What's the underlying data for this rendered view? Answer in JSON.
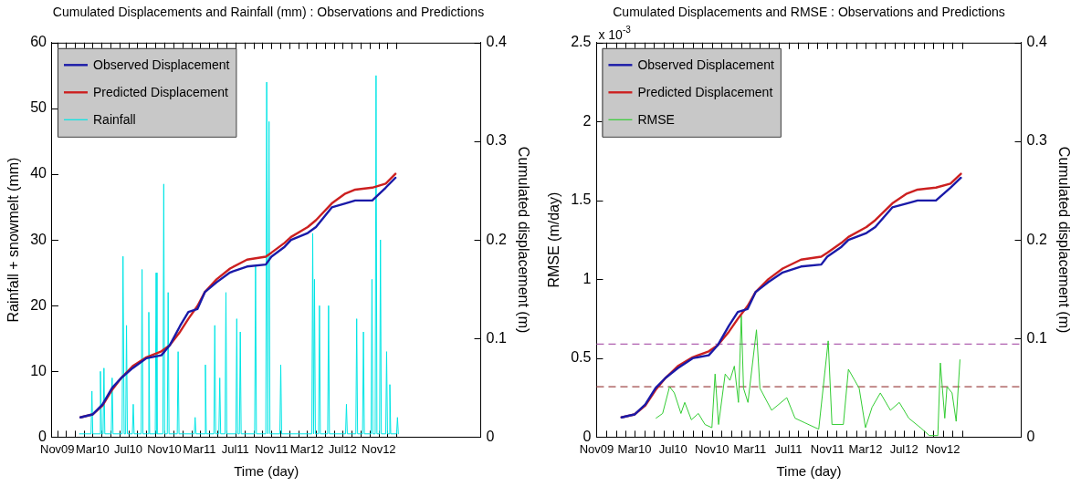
{
  "chart_data": [
    {
      "type": "line",
      "title": "Cumulated Displacements and Rainfall (mm) : Observations and Predictions",
      "xlabel": "Time (day)",
      "ylabel": "Rainfall + snowmelt (mm)",
      "y2label": "Cumulated displacement (m)",
      "legend": "top left",
      "grid": false,
      "xlim": [
        "2009-10-14",
        "2013-10-15"
      ],
      "xticks": [
        {
          "value": "2009-11-01",
          "label": "Nov09"
        },
        {
          "value": "2009-12-01",
          "label": null
        },
        {
          "value": "2010-01-01",
          "label": null
        },
        {
          "value": "2010-02-01",
          "label": null
        },
        {
          "value": "2010-03-01",
          "label": "Mar10"
        },
        {
          "value": "2010-04-01",
          "label": null
        },
        {
          "value": "2010-05-01",
          "label": null
        },
        {
          "value": "2010-06-01",
          "label": null
        },
        {
          "value": "2010-07-01",
          "label": "Jul10"
        },
        {
          "value": "2010-08-01",
          "label": null
        },
        {
          "value": "2010-09-01",
          "label": null
        },
        {
          "value": "2010-10-01",
          "label": null
        },
        {
          "value": "2010-11-01",
          "label": "Nov10"
        },
        {
          "value": "2010-12-01",
          "label": null
        },
        {
          "value": "2011-01-01",
          "label": null
        },
        {
          "value": "2011-02-01",
          "label": null
        },
        {
          "value": "2011-03-01",
          "label": "Mar11"
        },
        {
          "value": "2011-04-01",
          "label": null
        },
        {
          "value": "2011-05-01",
          "label": null
        },
        {
          "value": "2011-06-01",
          "label": null
        },
        {
          "value": "2011-07-01",
          "label": "Jul11"
        },
        {
          "value": "2011-08-01",
          "label": null
        },
        {
          "value": "2011-09-01",
          "label": null
        },
        {
          "value": "2011-10-01",
          "label": null
        },
        {
          "value": "2011-11-01",
          "label": "Nov11"
        },
        {
          "value": "2011-12-01",
          "label": null
        },
        {
          "value": "2012-01-01",
          "label": null
        },
        {
          "value": "2012-02-01",
          "label": null
        },
        {
          "value": "2012-03-01",
          "label": "Mar12"
        },
        {
          "value": "2012-04-01",
          "label": null
        },
        {
          "value": "2012-05-01",
          "label": null
        },
        {
          "value": "2012-06-01",
          "label": null
        },
        {
          "value": "2012-07-01",
          "label": "Jul12"
        },
        {
          "value": "2012-08-01",
          "label": null
        },
        {
          "value": "2012-09-01",
          "label": null
        },
        {
          "value": "2012-10-01",
          "label": null
        },
        {
          "value": "2012-11-01",
          "label": "Nov12"
        },
        {
          "value": "2012-12-01",
          "label": null
        },
        {
          "value": "2013-01-01",
          "label": null
        }
      ],
      "ylim": [
        0,
        60
      ],
      "yticks": [
        0,
        10,
        20,
        30,
        40,
        50,
        60
      ],
      "y2lim": [
        0,
        0.4
      ],
      "y2ticks": [
        0,
        0.1,
        0.2,
        0.3,
        0.4
      ],
      "series": [
        {
          "name": "Observed Displacement",
          "color": "#1a1aa8",
          "axis": "y2",
          "x": [
            "2010-01-19",
            "2010-03-01",
            "2010-04-04",
            "2010-05-07",
            "2010-06-07",
            "2010-07-16",
            "2010-09-01",
            "2010-10-22",
            "2010-11-19",
            "2010-12-25",
            "2011-01-22",
            "2011-02-22",
            "2011-03-19",
            "2011-04-28",
            "2011-06-13",
            "2011-08-10",
            "2011-10-13",
            "2011-11-01",
            "2011-12-16",
            "2012-01-07",
            "2012-03-04",
            "2012-04-01",
            "2012-05-25",
            "2012-07-10",
            "2012-08-13",
            "2012-10-10",
            "2012-11-25",
            "2012-12-28"
          ],
          "values": [
            0.02,
            0.023,
            0.033,
            0.05,
            0.06,
            0.07,
            0.08,
            0.083,
            0.093,
            0.113,
            0.127,
            0.13,
            0.147,
            0.157,
            0.167,
            0.173,
            0.175,
            0.183,
            0.193,
            0.2,
            0.207,
            0.213,
            0.233,
            0.237,
            0.24,
            0.24,
            0.253,
            0.263
          ]
        },
        {
          "name": "Predicted Displacement",
          "color": "#cc2020",
          "axis": "y2",
          "x": [
            "2010-01-19",
            "2010-03-01",
            "2010-04-04",
            "2010-05-07",
            "2010-06-07",
            "2010-07-16",
            "2010-09-01",
            "2010-10-22",
            "2010-11-19",
            "2010-12-25",
            "2011-01-22",
            "2011-02-22",
            "2011-03-19",
            "2011-04-28",
            "2011-06-13",
            "2011-08-10",
            "2011-10-13",
            "2011-11-01",
            "2011-12-16",
            "2012-01-07",
            "2012-03-04",
            "2012-04-01",
            "2012-05-25",
            "2012-07-10",
            "2012-08-13",
            "2012-10-10",
            "2012-11-25",
            "2012-12-28"
          ],
          "values": [
            0.02,
            0.023,
            0.032,
            0.048,
            0.06,
            0.072,
            0.081,
            0.087,
            0.093,
            0.107,
            0.12,
            0.133,
            0.147,
            0.16,
            0.171,
            0.18,
            0.183,
            0.187,
            0.197,
            0.203,
            0.213,
            0.22,
            0.237,
            0.247,
            0.251,
            0.253,
            0.257,
            0.267
          ]
        },
        {
          "name": "Rainfall",
          "color": "#00e5e5",
          "x": [
            "2010-01-15",
            "2010-02-24",
            "2010-02-27",
            "2010-03-02",
            "2010-03-25",
            "2010-03-28",
            "2010-04-01",
            "2010-04-06",
            "2010-04-09",
            "2010-04-12",
            "2010-05-04",
            "2010-05-07",
            "2010-05-10",
            "2010-06-10",
            "2010-06-13",
            "2010-06-17",
            "2010-06-22",
            "2010-06-25",
            "2010-06-28",
            "2010-07-15",
            "2010-07-18",
            "2010-07-21",
            "2010-08-14",
            "2010-08-17",
            "2010-08-20",
            "2010-09-06",
            "2010-09-09",
            "2010-09-12",
            "2010-10-01",
            "2010-10-04",
            "2010-10-07",
            "2010-10-27",
            "2010-10-30",
            "2010-11-02",
            "2010-11-11",
            "2010-11-14",
            "2010-11-17",
            "2010-12-15",
            "2010-12-18",
            "2010-12-21",
            "2011-02-11",
            "2011-02-14",
            "2011-02-17",
            "2011-03-18",
            "2011-03-21",
            "2011-03-24",
            "2011-04-19",
            "2011-04-22",
            "2011-04-25",
            "2011-05-06",
            "2011-05-09",
            "2011-05-12",
            "2011-05-27",
            "2011-05-30",
            "2011-06-02",
            "2011-07-03",
            "2011-07-06",
            "2011-07-09",
            "2011-07-15",
            "2011-07-18",
            "2011-07-21",
            "2011-09-05",
            "2011-09-08",
            "2011-09-11",
            "2011-10-13",
            "2011-10-16",
            "2011-10-20",
            "2011-10-24",
            "2011-10-27",
            "2011-11-30",
            "2011-12-03",
            "2011-12-06",
            "2012-03-18",
            "2012-03-21",
            "2012-03-24",
            "2012-03-27",
            "2012-03-30",
            "2012-04-10",
            "2012-04-13",
            "2012-04-16",
            "2012-05-11",
            "2012-05-14",
            "2012-05-17",
            "2012-07-11",
            "2012-07-14",
            "2012-07-17",
            "2012-08-15",
            "2012-08-18",
            "2012-08-21",
            "2012-09-07",
            "2012-09-10",
            "2012-09-13",
            "2012-10-06",
            "2012-10-09",
            "2012-10-12",
            "2012-10-20",
            "2012-10-23",
            "2012-10-26",
            "2012-11-04",
            "2012-11-07",
            "2012-11-10",
            "2012-11-25",
            "2012-11-28",
            "2012-12-01",
            "2012-12-06",
            "2012-12-09",
            "2012-12-12",
            "2013-01-01",
            "2013-01-04",
            "2013-01-07"
          ],
          "values": [
            0.5,
            0.5,
            7,
            0.5,
            0.5,
            10,
            0.5,
            0.5,
            10.5,
            0.5,
            0.5,
            9,
            0.5,
            0.5,
            27.5,
            0.5,
            0.5,
            17,
            0.5,
            0.5,
            5,
            0.5,
            0.5,
            25.5,
            0.5,
            0.5,
            19,
            0.5,
            0.5,
            25,
            0.5,
            0.5,
            38.5,
            0.5,
            0.5,
            22,
            0.5,
            0.5,
            13,
            0.5,
            0.5,
            3,
            0.5,
            0.5,
            11,
            0.5,
            0.5,
            17,
            0.5,
            0.5,
            9,
            0.5,
            0.5,
            22,
            0.5,
            0.5,
            18,
            0.5,
            0.5,
            16,
            0.5,
            0.5,
            26,
            0.5,
            0.5,
            54,
            0.5,
            48,
            0.5,
            0.5,
            11,
            0.5,
            0.5,
            31,
            0.5,
            24,
            0.5,
            0.5,
            20,
            0.5,
            0.5,
            20,
            0.5,
            0.5,
            5,
            0.5,
            0.5,
            18,
            0.5,
            0.5,
            16,
            0.5,
            0.5,
            24,
            0.5,
            0.5,
            55,
            0.5,
            0.5,
            30,
            0.5,
            0.5,
            13,
            0.5,
            0.5,
            8,
            0.5,
            0.5,
            3,
            0.5
          ]
        }
      ]
    },
    {
      "type": "line",
      "title": "Cumulated Displacements and RMSE : Observations and Predictions",
      "xlabel": "Time (day)",
      "ylabel": "RMSE (m/day)",
      "y2label": "Cumulated displacement (m)",
      "legend": "top left",
      "grid": false,
      "annotations": [
        "x 10$^{-3}$"
      ],
      "xlim": [
        "2009-11-01",
        "2013-07-07"
      ],
      "xticks": [
        {
          "value": "2009-11-01",
          "label": "Nov09"
        },
        {
          "value": "2009-12-01",
          "label": null
        },
        {
          "value": "2010-01-01",
          "label": null
        },
        {
          "value": "2010-02-01",
          "label": null
        },
        {
          "value": "2010-03-01",
          "label": "Mar10"
        },
        {
          "value": "2010-04-01",
          "label": null
        },
        {
          "value": "2010-05-01",
          "label": null
        },
        {
          "value": "2010-06-01",
          "label": null
        },
        {
          "value": "2010-07-01",
          "label": "Jul10"
        },
        {
          "value": "2010-08-01",
          "label": null
        },
        {
          "value": "2010-09-01",
          "label": null
        },
        {
          "value": "2010-10-01",
          "label": null
        },
        {
          "value": "2010-11-01",
          "label": "Nov10"
        },
        {
          "value": "2010-12-01",
          "label": null
        },
        {
          "value": "2011-01-01",
          "label": null
        },
        {
          "value": "2011-02-01",
          "label": null
        },
        {
          "value": "2011-03-01",
          "label": "Mar11"
        },
        {
          "value": "2011-04-01",
          "label": null
        },
        {
          "value": "2011-05-01",
          "label": null
        },
        {
          "value": "2011-06-01",
          "label": null
        },
        {
          "value": "2011-07-01",
          "label": "Jul11"
        },
        {
          "value": "2011-08-01",
          "label": null
        },
        {
          "value": "2011-09-01",
          "label": null
        },
        {
          "value": "2011-10-01",
          "label": null
        },
        {
          "value": "2011-11-01",
          "label": "Nov11"
        },
        {
          "value": "2011-12-01",
          "label": null
        },
        {
          "value": "2012-01-01",
          "label": null
        },
        {
          "value": "2012-02-01",
          "label": null
        },
        {
          "value": "2012-03-01",
          "label": "Mar12"
        },
        {
          "value": "2012-04-01",
          "label": null
        },
        {
          "value": "2012-05-01",
          "label": null
        },
        {
          "value": "2012-06-01",
          "label": null
        },
        {
          "value": "2012-07-01",
          "label": "Jul12"
        },
        {
          "value": "2012-08-01",
          "label": null
        },
        {
          "value": "2012-09-01",
          "label": null
        },
        {
          "value": "2012-10-01",
          "label": null
        },
        {
          "value": "2012-11-01",
          "label": "Nov12"
        },
        {
          "value": "2012-12-01",
          "label": null
        },
        {
          "value": "2013-01-01",
          "label": null
        }
      ],
      "ylim": [
        0,
        2.5
      ],
      "yticks": [
        0,
        0.5,
        1,
        1.5,
        2,
        2.5
      ],
      "y2lim": [
        0,
        0.4
      ],
      "y2ticks": [
        0,
        0.1,
        0.2,
        0.3,
        0.4
      ],
      "ref_lines": [
        {
          "axis": "y",
          "value": 0.59,
          "label": null,
          "color": "#b060b0",
          "line_style": "dashed"
        },
        {
          "axis": "y",
          "value": 0.32,
          "label": null,
          "color": "#a04848",
          "line_style": "dashed"
        }
      ],
      "series": [
        {
          "name": "Observed Displacement",
          "color": "#1a1aa8",
          "axis": "y2",
          "x": [
            "2010-01-19",
            "2010-03-01",
            "2010-04-04",
            "2010-05-07",
            "2010-06-07",
            "2010-07-16",
            "2010-09-01",
            "2010-10-22",
            "2010-11-19",
            "2010-12-25",
            "2011-01-22",
            "2011-02-22",
            "2011-03-19",
            "2011-04-28",
            "2011-06-13",
            "2011-08-10",
            "2011-10-13",
            "2011-11-01",
            "2011-12-16",
            "2012-01-07",
            "2012-03-04",
            "2012-04-01",
            "2012-05-25",
            "2012-07-10",
            "2012-08-13",
            "2012-10-10",
            "2012-11-25",
            "2012-12-28"
          ],
          "values": [
            0.02,
            0.023,
            0.033,
            0.05,
            0.06,
            0.07,
            0.08,
            0.083,
            0.093,
            0.113,
            0.127,
            0.13,
            0.147,
            0.157,
            0.167,
            0.173,
            0.175,
            0.183,
            0.193,
            0.2,
            0.207,
            0.213,
            0.233,
            0.237,
            0.24,
            0.24,
            0.253,
            0.263
          ]
        },
        {
          "name": "Predicted Displacement",
          "color": "#cc2020",
          "axis": "y2",
          "x": [
            "2010-01-19",
            "2010-03-01",
            "2010-04-04",
            "2010-05-07",
            "2010-06-07",
            "2010-07-16",
            "2010-09-01",
            "2010-10-22",
            "2010-11-19",
            "2010-12-25",
            "2011-01-22",
            "2011-02-22",
            "2011-03-19",
            "2011-04-28",
            "2011-06-13",
            "2011-08-10",
            "2011-10-13",
            "2011-11-01",
            "2011-12-16",
            "2012-01-07",
            "2012-03-04",
            "2012-04-01",
            "2012-05-25",
            "2012-07-10",
            "2012-08-13",
            "2012-10-10",
            "2012-11-25",
            "2012-12-28"
          ],
          "values": [
            0.02,
            0.023,
            0.032,
            0.048,
            0.06,
            0.072,
            0.081,
            0.087,
            0.093,
            0.107,
            0.12,
            0.133,
            0.147,
            0.16,
            0.171,
            0.18,
            0.183,
            0.187,
            0.197,
            0.203,
            0.213,
            0.22,
            0.237,
            0.247,
            0.251,
            0.253,
            0.257,
            0.267
          ]
        },
        {
          "name": "RMSE",
          "color": "#33cc33",
          "x": [
            "2010-05-08",
            "2010-05-29",
            "2010-06-20",
            "2010-07-05",
            "2010-07-26",
            "2010-08-07",
            "2010-08-28",
            "2010-09-19",
            "2010-10-10",
            "2010-11-01",
            "2010-11-11",
            "2010-11-22",
            "2010-12-13",
            "2010-12-28",
            "2011-01-11",
            "2011-01-24",
            "2011-02-02",
            "2011-02-09",
            "2011-02-23",
            "2011-03-22",
            "2011-04-02",
            "2011-05-09",
            "2011-06-26",
            "2011-07-22",
            "2011-08-23",
            "2011-10-05",
            "2011-11-04",
            "2011-11-16",
            "2011-12-22",
            "2012-01-07",
            "2012-02-10",
            "2012-03-01",
            "2012-03-22",
            "2012-04-17",
            "2012-05-19",
            "2012-06-16",
            "2012-07-16",
            "2012-08-22",
            "2012-09-19",
            "2012-10-16",
            "2012-10-24",
            "2012-11-07",
            "2012-11-14",
            "2012-11-30",
            "2012-12-13",
            "2012-12-25"
          ],
          "values": [
            0.12,
            0.15,
            0.32,
            0.28,
            0.15,
            0.22,
            0.11,
            0.15,
            0.08,
            0.06,
            0.4,
            0.08,
            0.4,
            0.36,
            0.45,
            0.22,
            0.77,
            0.31,
            0.22,
            0.68,
            0.31,
            0.17,
            0.25,
            0.12,
            0.09,
            0.05,
            0.61,
            0.08,
            0.08,
            0.43,
            0.31,
            0.06,
            0.19,
            0.28,
            0.17,
            0.22,
            0.12,
            0.06,
            0.01,
            0.01,
            0.47,
            0.12,
            0.32,
            0.28,
            0.1,
            0.49
          ]
        }
      ]
    }
  ]
}
